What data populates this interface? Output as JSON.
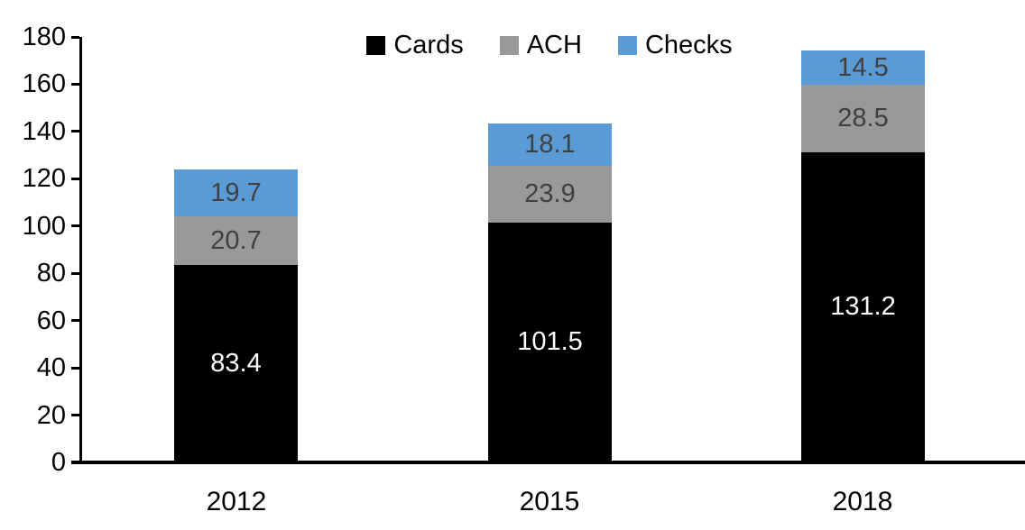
{
  "chart_data": {
    "type": "bar",
    "stacked": true,
    "title": "",
    "xlabel": "",
    "ylabel": "",
    "categories": [
      "2012",
      "2015",
      "2018"
    ],
    "series": [
      {
        "name": "Cards",
        "color": "#000000",
        "label_color": "#ffffff",
        "values": [
          83.4,
          101.5,
          131.2
        ]
      },
      {
        "name": "ACH",
        "color": "#999999",
        "label_color": "#404040",
        "values": [
          20.7,
          23.9,
          28.5
        ]
      },
      {
        "name": "Checks",
        "color": "#5B9BD5",
        "label_color": "#404040",
        "values": [
          19.7,
          18.1,
          14.5
        ]
      }
    ],
    "segment_labels": {
      "2012": {
        "Cards": "83.4",
        "ACH": "20.7",
        "Checks": "19.7"
      },
      "2015": {
        "Cards": "101.5",
        "ACH": "23.9",
        "Checks": "18.1"
      },
      "2018": {
        "Cards": "131.2",
        "ACH": "28.5",
        "Checks": "14.5"
      }
    },
    "ylim": [
      0,
      180
    ],
    "yticks": [
      0,
      20,
      40,
      60,
      80,
      100,
      120,
      140,
      160,
      180
    ],
    "legend_position": "top-center",
    "legend_labels": [
      "Cards",
      "ACH",
      "Checks"
    ],
    "grid": false,
    "axis_color": "#000000"
  }
}
